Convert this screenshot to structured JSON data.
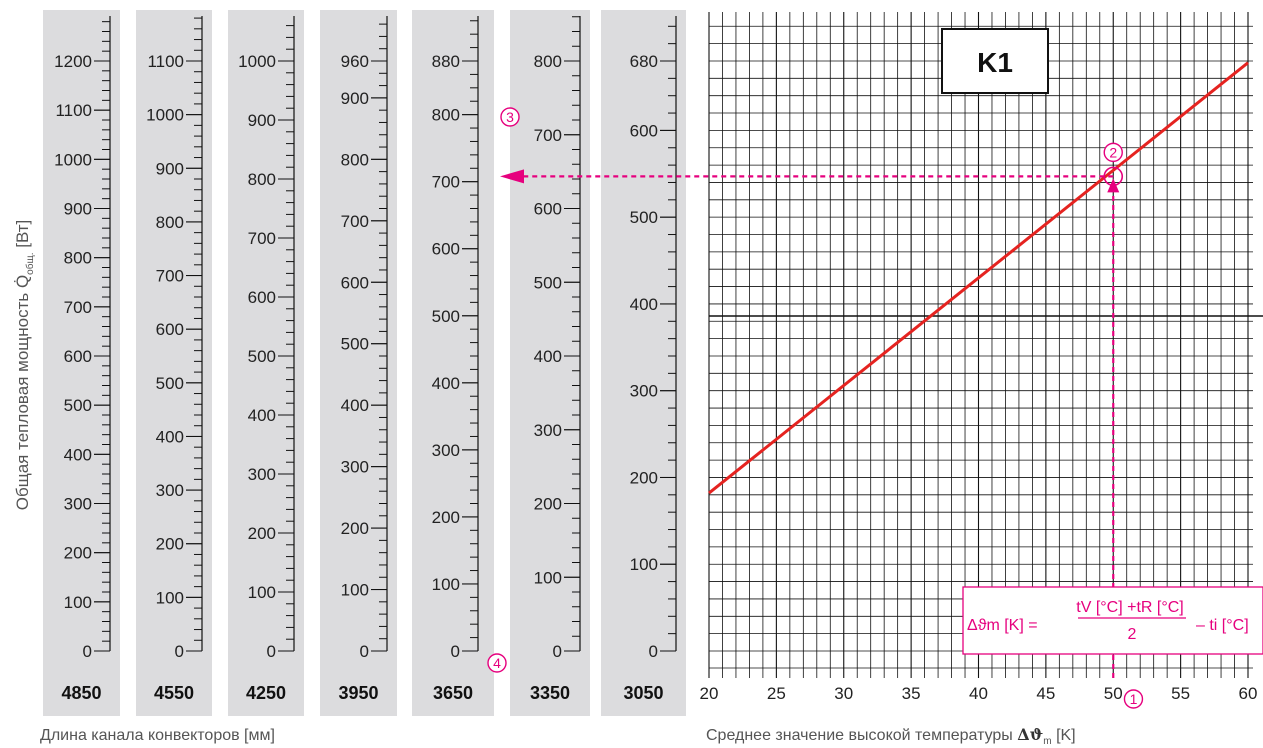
{
  "chart_data": {
    "type": "line",
    "title": "K1",
    "ylabel": "Общая тепловая мощность Q̇общ. [Вт]",
    "ylabel_main": "Общая тепловая мощность Q̇",
    "ylabel_sub": "общ.",
    "ylabel_unit": "[Вт]",
    "columns_caption": "Длина канала конвекторов [мм]",
    "xlabel": "Среднее значение высокой температуры Δϑm [K]",
    "xlabel_main": "Среднее значение высокой температуры",
    "xlabel_sym": "Δϑ",
    "xlabel_sub": "m",
    "xlabel_unit": "[K]",
    "xlim": [
      20,
      60
    ],
    "x_ticks": [
      20,
      25,
      30,
      35,
      40,
      45,
      50,
      55,
      60
    ],
    "ylim_right": [
      0,
      680
    ],
    "grid": true,
    "scales": [
      {
        "length": "4850",
        "max": 1200,
        "major_labels": [
          0,
          100,
          200,
          300,
          400,
          500,
          600,
          700,
          800,
          900,
          1000,
          1100,
          1200
        ]
      },
      {
        "length": "4550",
        "max": 1100,
        "major_labels": [
          0,
          100,
          200,
          300,
          400,
          500,
          600,
          700,
          800,
          900,
          1000,
          1100
        ]
      },
      {
        "length": "4250",
        "max": 1000,
        "major_labels": [
          0,
          100,
          200,
          300,
          400,
          500,
          600,
          700,
          800,
          900,
          1000
        ]
      },
      {
        "length": "3950",
        "max": 960,
        "major_labels": [
          0,
          100,
          200,
          300,
          400,
          500,
          600,
          700,
          800,
          900,
          960
        ]
      },
      {
        "length": "3650",
        "max": 880,
        "major_labels": [
          0,
          100,
          200,
          300,
          400,
          500,
          600,
          700,
          800,
          880
        ]
      },
      {
        "length": "3350",
        "max": 800,
        "major_labels": [
          0,
          100,
          200,
          300,
          400,
          500,
          600,
          700,
          800
        ]
      },
      {
        "length": "3050",
        "max": 680,
        "major_labels": [
          0,
          100,
          200,
          300,
          400,
          500,
          600,
          680
        ]
      }
    ],
    "series": [
      {
        "name": "",
        "color": "#e52320",
        "x": [
          20,
          60
        ],
        "y": [
          182,
          678
        ]
      }
    ],
    "example": {
      "dtm": 50,
      "q_right": 547,
      "q_result": 713,
      "result_scale": "3650",
      "markers": [
        "1",
        "2",
        "3",
        "4"
      ]
    },
    "formula": {
      "lhs": "Δϑm [K] =",
      "numerator": "tV [°C] +tR [°C]",
      "denominator": "2",
      "rhs": "– ti [°C]"
    },
    "colors": {
      "accent": "#e6007e",
      "line": "#e52320",
      "column_bg": "#dcdcde"
    }
  }
}
